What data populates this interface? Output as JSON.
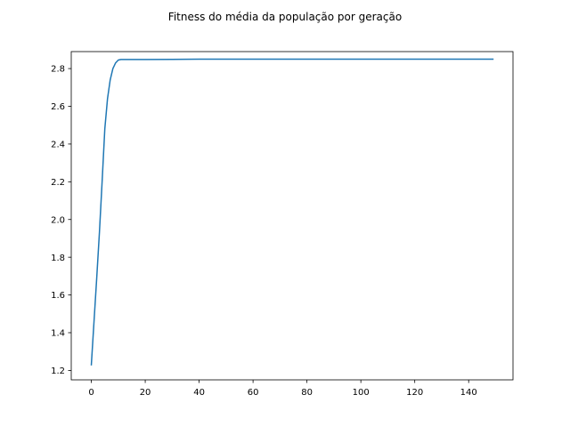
{
  "chart_data": {
    "type": "line",
    "title": "Fitness do média da população por geração",
    "xlabel": "",
    "ylabel": "",
    "xlim": [
      -7.45,
      156.45
    ],
    "ylim": [
      1.15,
      2.89
    ],
    "xticks": [
      0,
      20,
      40,
      60,
      80,
      100,
      120,
      140
    ],
    "xtick_labels": [
      "0",
      "20",
      "40",
      "60",
      "80",
      "100",
      "120",
      "140"
    ],
    "yticks": [
      1.2,
      1.4,
      1.6,
      1.8,
      2.0,
      2.2,
      2.4,
      2.6,
      2.8
    ],
    "ytick_labels": [
      "1.2",
      "1.4",
      "1.6",
      "1.8",
      "2.0",
      "2.2",
      "2.4",
      "2.6",
      "2.8"
    ],
    "grid": false,
    "series": [
      {
        "color": "#1f77b4",
        "x": [
          0,
          1,
          2,
          3,
          4,
          5,
          6,
          7,
          8,
          9,
          10,
          11,
          12,
          13,
          15,
          20,
          30,
          40,
          50,
          60,
          80,
          100,
          120,
          140,
          149
        ],
        "y": [
          1.23,
          1.46,
          1.69,
          1.93,
          2.2,
          2.48,
          2.64,
          2.74,
          2.8,
          2.83,
          2.845,
          2.848,
          2.848,
          2.848,
          2.848,
          2.848,
          2.849,
          2.85,
          2.85,
          2.85,
          2.85,
          2.85,
          2.85,
          2.85,
          2.85
        ]
      }
    ]
  }
}
